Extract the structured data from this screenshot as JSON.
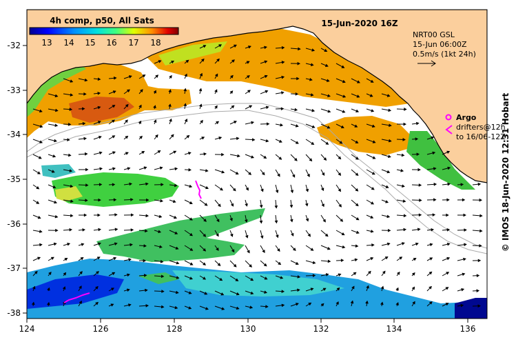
{
  "title": "15-Jun-2020 16Z",
  "colorbar": {
    "label": "4h comp, p50, All Sats",
    "ticks": [
      "13",
      "14",
      "15",
      "16",
      "17",
      "18"
    ]
  },
  "model_info": {
    "line1": "NRT00 GSL",
    "line2": "15-Jun 06:00Z",
    "line3": "0.5m/s (1kt 24h)"
  },
  "legend": {
    "argo_label": "Argo",
    "drifter_line1": "drifters@12h",
    "drifter_line2": "to 16/06-12Z"
  },
  "credit": "© IMOS 18-Jun-2020 12:31 Hobart",
  "axes": {
    "x_ticks": [
      "124",
      "126",
      "128",
      "130",
      "132",
      "134",
      "136"
    ],
    "y_ticks": [
      "-32",
      "-33",
      "-34",
      "-35",
      "-36",
      "-37",
      "-38"
    ]
  },
  "colors": {
    "land": "#fbcf9d",
    "ocean": "#ffffff",
    "argo": "#ff00ff",
    "colormap": [
      "#000090",
      "#0000ff",
      "#0080ff",
      "#00ffff",
      "#80ff80",
      "#ffff00",
      "#ff8000",
      "#ff0000",
      "#800000"
    ]
  }
}
